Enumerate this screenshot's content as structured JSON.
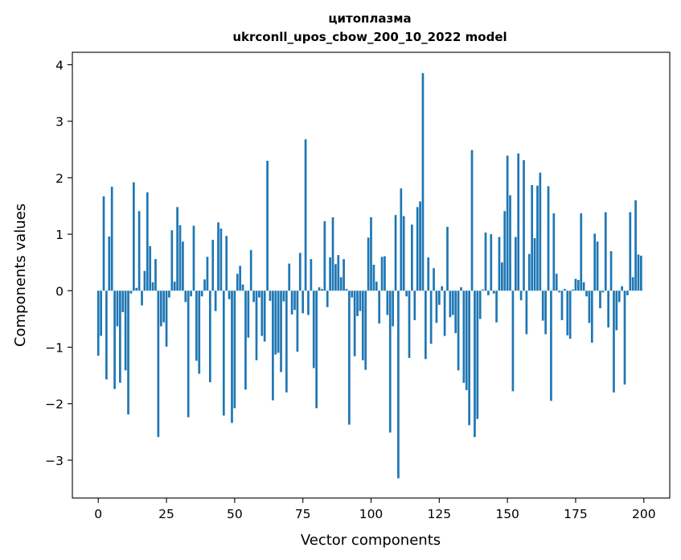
{
  "chart_data": {
    "type": "bar",
    "title": "цитоплазма",
    "subtitle": "ukrconll_upos_cbow_200_10_2022 model",
    "xlabel": "Vector components",
    "ylabel": "Components values",
    "xlim": [
      -9.5,
      209.5
    ],
    "ylim": [
      -3.67,
      4.22
    ],
    "xticks": [
      0,
      25,
      50,
      75,
      100,
      125,
      150,
      175,
      200
    ],
    "yticks": [
      -3,
      -2,
      -1,
      0,
      1,
      2,
      3,
      4
    ],
    "ytick_labels": [
      "−3",
      "−2",
      "−1",
      "0",
      "1",
      "2",
      "3",
      "4"
    ],
    "color": "#1f77b4",
    "grid": false,
    "values": [
      -1.15,
      -0.8,
      1.67,
      -1.57,
      0.96,
      1.84,
      -1.74,
      -0.63,
      -1.63,
      -0.38,
      -1.41,
      -2.19,
      -0.05,
      1.92,
      0.05,
      1.41,
      -0.26,
      0.35,
      1.74,
      0.79,
      0.15,
      0.56,
      -2.59,
      -0.63,
      -0.56,
      -0.99,
      -0.12,
      1.07,
      0.16,
      1.48,
      1.16,
      0.87,
      -0.2,
      -2.24,
      -0.1,
      1.15,
      -1.24,
      -1.47,
      -0.1,
      0.2,
      0.6,
      -1.62,
      0.9,
      -0.36,
      1.21,
      1.1,
      -2.21,
      0.97,
      -0.15,
      -2.34,
      -2.08,
      0.3,
      0.44,
      0.11,
      -1.75,
      -0.83,
      0.72,
      -0.2,
      -1.23,
      -0.12,
      -0.8,
      -0.9,
      2.3,
      -0.18,
      -1.94,
      -1.13,
      -1.1,
      -1.44,
      -0.19,
      -1.8,
      0.48,
      -0.42,
      -0.34,
      -1.08,
      0.67,
      -0.4,
      2.68,
      -0.43,
      0.56,
      -1.37,
      -2.08,
      0.06,
      0.03,
      1.23,
      -0.29,
      0.59,
      1.3,
      0.47,
      0.63,
      0.24,
      0.56,
      0.03,
      -2.37,
      -0.12,
      -1.16,
      -0.45,
      -0.36,
      -1.23,
      -1.4,
      0.94,
      1.3,
      0.46,
      0.16,
      -0.58,
      0.6,
      0.61,
      -0.43,
      -2.51,
      -0.63,
      1.34,
      -3.32,
      1.81,
      1.32,
      -0.1,
      -1.19,
      1.17,
      -0.52,
      1.48,
      1.58,
      3.85,
      -1.21,
      0.59,
      -0.94,
      0.4,
      -0.57,
      -0.25,
      0.08,
      -0.8,
      1.13,
      -0.47,
      -0.43,
      -0.75,
      -1.41,
      0.06,
      -1.63,
      -1.76,
      -2.38,
      2.49,
      -2.59,
      -2.27,
      -0.5,
      0.02,
      1.03,
      -0.08,
      1.0,
      -0.05,
      -0.56,
      0.95,
      0.5,
      1.41,
      2.39,
      1.69,
      -1.78,
      0.95,
      2.43,
      -0.17,
      2.31,
      -0.77,
      0.65,
      1.87,
      0.93,
      1.86,
      2.09,
      -0.53,
      -0.77,
      1.85,
      -1.95,
      1.37,
      0.3,
      -0.03,
      -0.52,
      0.03,
      -0.79,
      -0.85,
      0.02,
      0.21,
      0.19,
      1.37,
      0.15,
      -0.1,
      -0.57,
      -0.92,
      1.01,
      0.87,
      -0.31,
      -0.03,
      1.39,
      -0.65,
      0.7,
      -1.8,
      -0.7,
      -0.2,
      0.08,
      -1.66,
      -0.08,
      1.39,
      0.24,
      1.6,
      0.64,
      0.62
    ]
  }
}
